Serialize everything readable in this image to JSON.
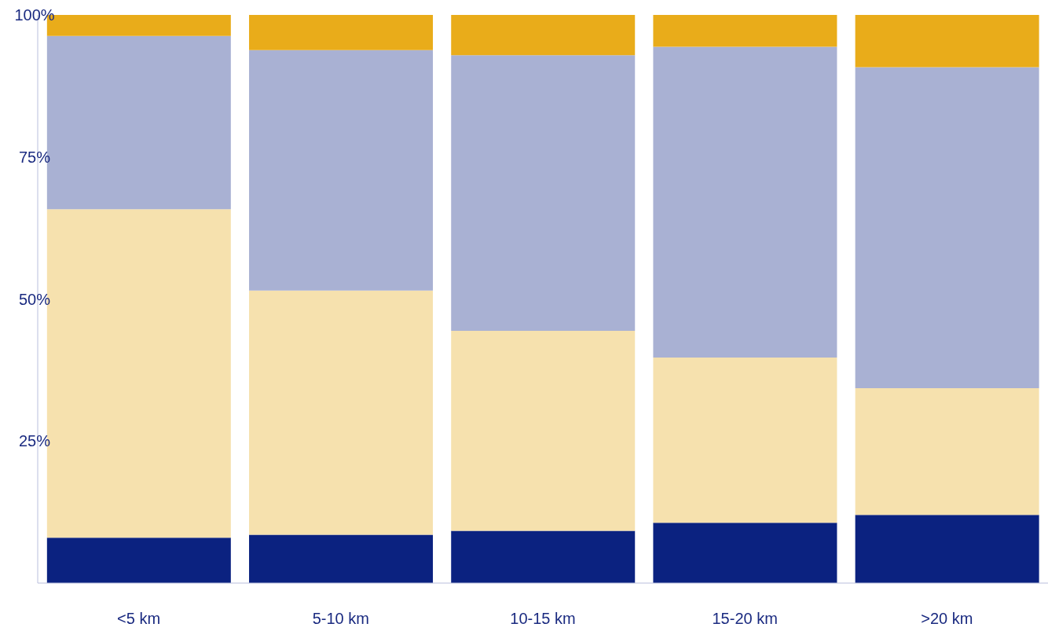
{
  "chart_data": {
    "type": "bar",
    "stacked": true,
    "categories": [
      "<5 km",
      "5-10 km",
      "10-15 km",
      "15-20 km",
      ">20 km"
    ],
    "series": [
      {
        "color": "#0b2280",
        "values": [
          8.0,
          8.5,
          9.2,
          10.6,
          12.0
        ]
      },
      {
        "color": "#f6e1ae",
        "values": [
          57.8,
          43.0,
          35.2,
          29.1,
          22.3
        ]
      },
      {
        "color": "#a9b1d3",
        "values": [
          30.5,
          42.3,
          48.5,
          54.7,
          56.5
        ]
      },
      {
        "color": "#e9ac1a",
        "values": [
          3.7,
          6.2,
          7.1,
          5.6,
          9.2
        ]
      }
    ],
    "ylim": [
      0,
      100
    ],
    "yticks": [
      {
        "value": 25,
        "label": "25%"
      },
      {
        "value": 50,
        "label": "50%"
      },
      {
        "value": 75,
        "label": "75%"
      },
      {
        "value": 100,
        "label": "100%"
      }
    ],
    "grid": false
  }
}
